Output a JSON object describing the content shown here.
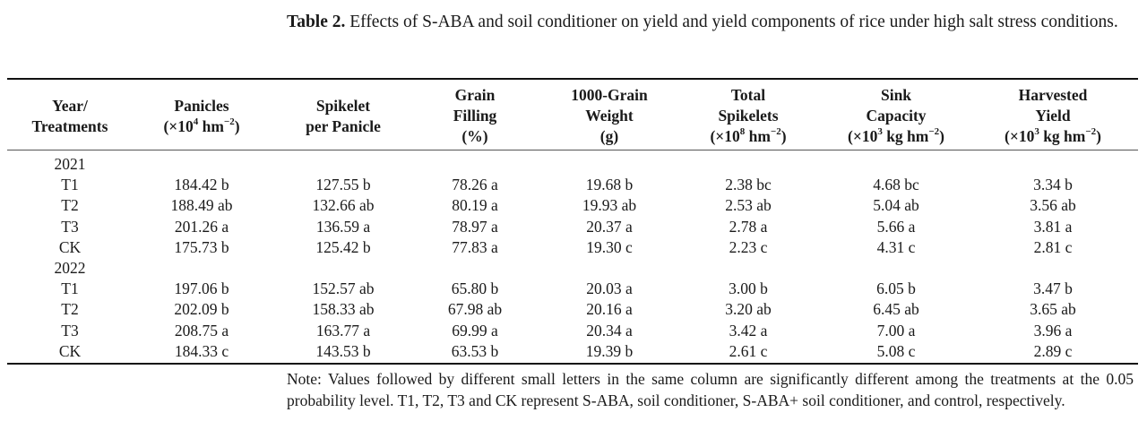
{
  "caption": {
    "label": "Table 2.",
    "text": " Effects of S-ABA and soil conditioner on yield and yield components of rice under high salt stress conditions."
  },
  "table": {
    "headers": [
      {
        "line1": "Year/",
        "line2": "Treatments",
        "unit_pre": "",
        "unit_sup": "",
        "unit_post": ""
      },
      {
        "line1": "Panicles",
        "line2": "",
        "unit_pre": "(×10",
        "unit_sup": "4",
        "unit_mid": " hm",
        "unit_sup2": "−2",
        "unit_post": ")"
      },
      {
        "line1": "Spikelet",
        "line2": "per Panicle",
        "unit_pre": "",
        "unit_sup": "",
        "unit_post": ""
      },
      {
        "line1": "Grain",
        "line2": "Filling",
        "unit_pre": "(%)",
        "unit_sup": "",
        "unit_post": ""
      },
      {
        "line1": "1000-Grain",
        "line2": "Weight",
        "unit_pre": "(g)",
        "unit_sup": "",
        "unit_post": ""
      },
      {
        "line1": "Total",
        "line2": "Spikelets",
        "unit_pre": "(×10",
        "unit_sup": "8",
        "unit_mid": " hm",
        "unit_sup2": "−2",
        "unit_post": ")"
      },
      {
        "line1": "Sink",
        "line2": "Capacity",
        "unit_pre": "(×10",
        "unit_sup": "3",
        "unit_mid": " kg hm",
        "unit_sup2": "−2",
        "unit_post": ")"
      },
      {
        "line1": "Harvested",
        "line2": "Yield",
        "unit_pre": "(×10",
        "unit_sup": "3",
        "unit_mid": " kg hm",
        "unit_sup2": "−2",
        "unit_post": ")"
      }
    ],
    "rows": [
      [
        "2021",
        "",
        "",
        "",
        "",
        "",
        "",
        ""
      ],
      [
        "T1",
        "184.42 b",
        "127.55 b",
        "78.26 a",
        "19.68 b",
        "2.38 bc",
        "4.68 bc",
        "3.34 b"
      ],
      [
        "T2",
        "188.49 ab",
        "132.66 ab",
        "80.19 a",
        "19.93 ab",
        "2.53 ab",
        "5.04 ab",
        "3.56 ab"
      ],
      [
        "T3",
        "201.26 a",
        "136.59 a",
        "78.97 a",
        "20.37 a",
        "2.78 a",
        "5.66 a",
        "3.81 a"
      ],
      [
        "CK",
        "175.73 b",
        "125.42 b",
        "77.83 a",
        "19.30 c",
        "2.23 c",
        "4.31 c",
        "2.81 c"
      ],
      [
        "2022",
        "",
        "",
        "",
        "",
        "",
        "",
        ""
      ],
      [
        "T1",
        "197.06 b",
        "152.57 ab",
        "65.80 b",
        "20.03 a",
        "3.00 b",
        "6.05 b",
        "3.47 b"
      ],
      [
        "T2",
        "202.09 b",
        "158.33 ab",
        "67.98 ab",
        "20.16 a",
        "3.20 ab",
        "6.45 ab",
        "3.65 ab"
      ],
      [
        "T3",
        "208.75 a",
        "163.77 a",
        "69.99 a",
        "20.34 a",
        "3.42 a",
        "7.00 a",
        "3.96 a"
      ],
      [
        "CK",
        "184.33 c",
        "143.53 b",
        "63.53 b",
        "19.39 b",
        "2.61 c",
        "5.08 c",
        "2.89 c"
      ]
    ]
  },
  "note": "Note: Values followed by different small letters in the same column are significantly different among the treatments at the 0.05 probability level. T1, T2, T3 and CK represent S-ABA, soil conditioner, S-ABA+ soil conditioner, and control, respectively."
}
